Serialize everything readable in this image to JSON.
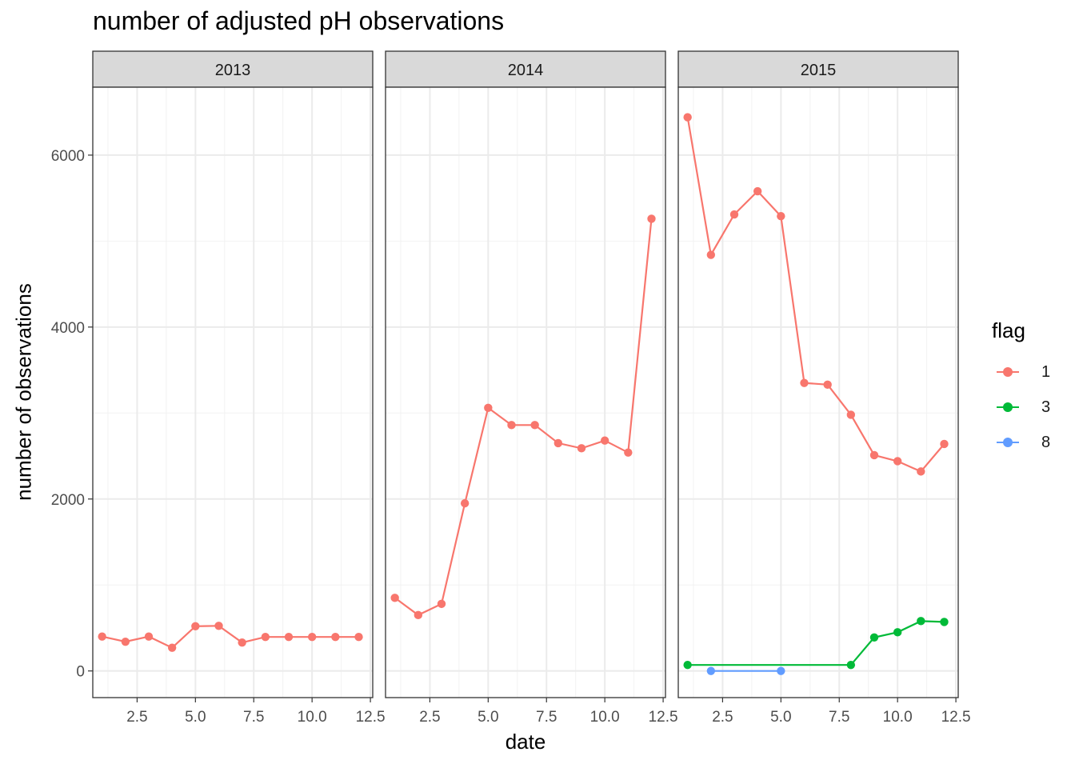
{
  "chart_data": {
    "type": "line",
    "title": "number of adjusted pH observations",
    "xlabel": "date",
    "ylabel": "number of observations",
    "xlim": [
      0.6,
      12.6
    ],
    "ylim": [
      -310,
      6790
    ],
    "x_ticks": [
      2.5,
      5.0,
      7.5,
      10.0,
      12.5
    ],
    "x_tick_labels": [
      "2.5",
      "5.0",
      "7.5",
      "10.0",
      "12.5"
    ],
    "y_ticks": [
      0,
      2000,
      4000,
      6000
    ],
    "y_tick_labels": [
      "0",
      "2000",
      "4000",
      "6000"
    ],
    "grid": true,
    "legend": {
      "title": "flag",
      "position": "right"
    },
    "series_colors": {
      "1": "#F8766D",
      "3": "#00BA38",
      "8": "#619CFF"
    },
    "facets": [
      {
        "label": "2013",
        "series": [
          {
            "name": "1",
            "x": [
              1,
              2,
              3,
              4,
              5,
              6,
              7,
              8,
              9,
              10,
              11,
              12
            ],
            "y": [
              400,
              340,
              400,
              270,
              520,
              525,
              330,
              395,
              395,
              395,
              395,
              395
            ]
          }
        ]
      },
      {
        "label": "2014",
        "series": [
          {
            "name": "1",
            "x": [
              1,
              2,
              3,
              4,
              5,
              6,
              7,
              8,
              9,
              10,
              11,
              12
            ],
            "y": [
              850,
              650,
              780,
              1950,
              3060,
              2860,
              2860,
              2650,
              2590,
              2680,
              2540,
              5260
            ]
          }
        ]
      },
      {
        "label": "2015",
        "series": [
          {
            "name": "1",
            "x": [
              1,
              2,
              3,
              4,
              5,
              6,
              7,
              8,
              9,
              10,
              11,
              12
            ],
            "y": [
              6440,
              4840,
              5310,
              5580,
              5290,
              3350,
              3330,
              2980,
              2510,
              2440,
              2320,
              2640
            ]
          },
          {
            "name": "3",
            "x": [
              1,
              8,
              9,
              10,
              11,
              12
            ],
            "y": [
              70,
              70,
              390,
              450,
              580,
              570
            ]
          },
          {
            "name": "8",
            "x": [
              2,
              5
            ],
            "y": [
              0,
              0
            ]
          }
        ]
      }
    ]
  }
}
